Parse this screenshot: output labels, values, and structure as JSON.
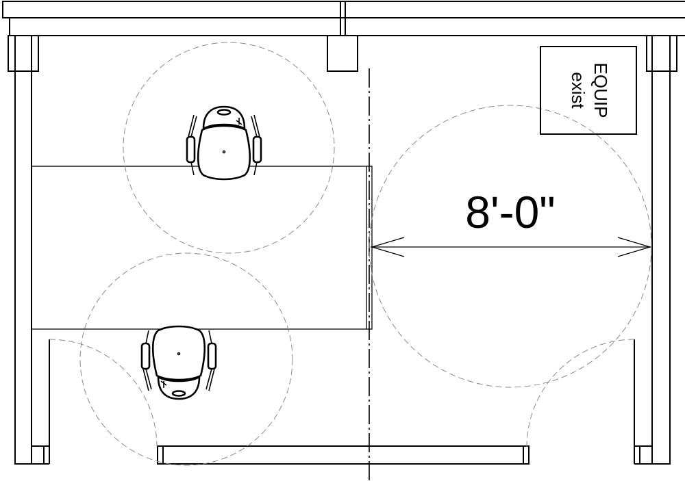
{
  "dimension": {
    "text": "8'-0\""
  },
  "equipment": {
    "line1": "EQUIP",
    "line2": "exist"
  }
}
